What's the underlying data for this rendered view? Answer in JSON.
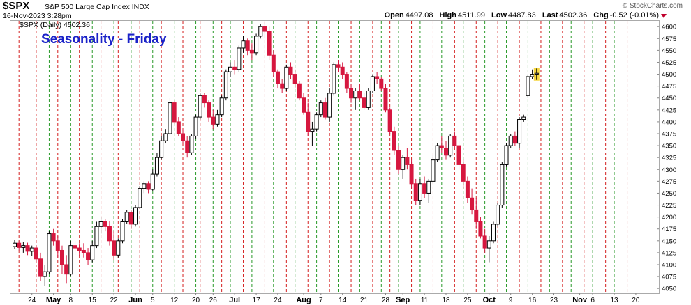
{
  "header": {
    "ticker": "$SPX",
    "company": "S&P 500 Large Cap Index INDX",
    "datetime": "16-Nov-2023 3:28pm",
    "watermark": "© StockCharts.com",
    "quote": {
      "open_label": "Open",
      "open": "4497.08",
      "high_label": "High",
      "high": "4511.99",
      "low_label": "Low",
      "low": "4487.83",
      "last_label": "Last",
      "last": "4502.36",
      "chg_label": "Chg",
      "chg": "-0.52 (-0.01%)"
    }
  },
  "colors": {
    "up_candle": "#000000",
    "down_candle": "#d6173f",
    "friday_line": "#2a9a2a",
    "monday_line": "#d42020",
    "title_color": "#1a22c8",
    "last_highlight": "#f5d020"
  },
  "chart_data": {
    "type": "candlestick",
    "title": "Seasonality - Friday",
    "legend": "$SPX (Daily) 4502.36",
    "y_axis": {
      "position": "right",
      "ylim": [
        4040,
        4612
      ],
      "ticks": [
        4050,
        4075,
        4100,
        4125,
        4150,
        4175,
        4200,
        4225,
        4250,
        4275,
        4300,
        4325,
        4350,
        4375,
        4400,
        4425,
        4450,
        4475,
        4500,
        4525,
        4550,
        4575,
        4600
      ]
    },
    "x_ticks": [
      {
        "i": 4,
        "label": "24"
      },
      {
        "i": 9,
        "label": "May"
      },
      {
        "i": 13,
        "label": "8"
      },
      {
        "i": 18,
        "label": "15"
      },
      {
        "i": 23,
        "label": "22"
      },
      {
        "i": 28,
        "label": "Jun"
      },
      {
        "i": 32,
        "label": "5"
      },
      {
        "i": 37,
        "label": "12"
      },
      {
        "i": 42,
        "label": "20"
      },
      {
        "i": 46,
        "label": "26"
      },
      {
        "i": 51,
        "label": "Jul"
      },
      {
        "i": 56,
        "label": "17"
      },
      {
        "i": 61,
        "label": "24"
      },
      {
        "i": 67,
        "label": "Aug"
      },
      {
        "i": 71,
        "label": "7"
      },
      {
        "i": 76,
        "label": "14"
      },
      {
        "i": 81,
        "label": "21"
      },
      {
        "i": 86,
        "label": "28"
      },
      {
        "i": 90,
        "label": "Sep"
      },
      {
        "i": 95,
        "label": "11"
      },
      {
        "i": 100,
        "label": "18"
      },
      {
        "i": 105,
        "label": "25"
      },
      {
        "i": 110,
        "label": "Oct"
      },
      {
        "i": 115,
        "label": "9"
      },
      {
        "i": 120,
        "label": "16"
      },
      {
        "i": 125,
        "label": "23"
      },
      {
        "i": 131,
        "label": "Nov"
      },
      {
        "i": 134,
        "label": "6"
      },
      {
        "i": 139,
        "label": "13"
      },
      {
        "i": 144,
        "label": "20"
      }
    ],
    "friday_lines": [
      8,
      13,
      18,
      23,
      27,
      32,
      37,
      42,
      46,
      50,
      55,
      60,
      65,
      70,
      75,
      80,
      85,
      89,
      94,
      99,
      104,
      109,
      114,
      119,
      124,
      129,
      134,
      139
    ],
    "monday_lines": [
      1,
      5,
      10,
      15,
      20,
      24,
      29,
      34,
      39,
      43,
      48,
      53,
      58,
      63,
      68,
      73,
      78,
      83,
      87,
      92,
      97,
      102,
      107,
      112,
      117,
      122,
      127,
      132,
      137,
      142
    ],
    "candles": [
      [
        4138,
        4152,
        4133,
        4145
      ],
      [
        4145,
        4150,
        4130,
        4136
      ],
      [
        4136,
        4148,
        4125,
        4140
      ],
      [
        4140,
        4146,
        4120,
        4128
      ],
      [
        4128,
        4140,
        4118,
        4135
      ],
      [
        4135,
        4140,
        4105,
        4112
      ],
      [
        4112,
        4125,
        4065,
        4075
      ],
      [
        4075,
        4100,
        4055,
        4085
      ],
      [
        4085,
        4170,
        4080,
        4165
      ],
      [
        4165,
        4175,
        4140,
        4150
      ],
      [
        4150,
        4160,
        4115,
        4130
      ],
      [
        4130,
        4140,
        4080,
        4100
      ],
      [
        4100,
        4120,
        4060,
        4080
      ],
      [
        4080,
        4150,
        4075,
        4140
      ],
      [
        4140,
        4150,
        4120,
        4135
      ],
      [
        4135,
        4145,
        4118,
        4130
      ],
      [
        4130,
        4145,
        4115,
        4125
      ],
      [
        4125,
        4135,
        4100,
        4110
      ],
      [
        4110,
        4150,
        4105,
        4140
      ],
      [
        4140,
        4190,
        4135,
        4180
      ],
      [
        4180,
        4200,
        4165,
        4190
      ],
      [
        4190,
        4195,
        4170,
        4180
      ],
      [
        4180,
        4192,
        4140,
        4150
      ],
      [
        4150,
        4170,
        4110,
        4120
      ],
      [
        4120,
        4155,
        4115,
        4150
      ],
      [
        4150,
        4195,
        4145,
        4190
      ],
      [
        4190,
        4215,
        4185,
        4210
      ],
      [
        4210,
        4215,
        4175,
        4185
      ],
      [
        4185,
        4225,
        4180,
        4220
      ],
      [
        4220,
        4265,
        4218,
        4260
      ],
      [
        4260,
        4275,
        4250,
        4270
      ],
      [
        4270,
        4275,
        4250,
        4258
      ],
      [
        4258,
        4300,
        4255,
        4290
      ],
      [
        4290,
        4335,
        4285,
        4325
      ],
      [
        4325,
        4370,
        4320,
        4360
      ],
      [
        4360,
        4385,
        4355,
        4375
      ],
      [
        4375,
        4450,
        4370,
        4440
      ],
      [
        4440,
        4445,
        4395,
        4400
      ],
      [
        4400,
        4410,
        4370,
        4375
      ],
      [
        4375,
        4385,
        4355,
        4360
      ],
      [
        4360,
        4370,
        4325,
        4335
      ],
      [
        4335,
        4375,
        4330,
        4370
      ],
      [
        4370,
        4415,
        4365,
        4410
      ],
      [
        4410,
        4460,
        4405,
        4455
      ],
      [
        4455,
        4460,
        4430,
        4440
      ],
      [
        4440,
        4445,
        4400,
        4410
      ],
      [
        4410,
        4425,
        4385,
        4395
      ],
      [
        4395,
        4425,
        4390,
        4415
      ],
      [
        4415,
        4455,
        4410,
        4450
      ],
      [
        4450,
        4510,
        4445,
        4505
      ],
      [
        4505,
        4525,
        4495,
        4515
      ],
      [
        4515,
        4530,
        4500,
        4510
      ],
      [
        4510,
        4560,
        4505,
        4555
      ],
      [
        4555,
        4580,
        4545,
        4570
      ],
      [
        4570,
        4575,
        4540,
        4550
      ],
      [
        4550,
        4565,
        4530,
        4545
      ],
      [
        4545,
        4585,
        4540,
        4580
      ],
      [
        4580,
        4605,
        4575,
        4600
      ],
      [
        4600,
        4610,
        4580,
        4590
      ],
      [
        4590,
        4600,
        4530,
        4540
      ],
      [
        4540,
        4550,
        4495,
        4505
      ],
      [
        4505,
        4510,
        4470,
        4480
      ],
      [
        4480,
        4490,
        4460,
        4470
      ],
      [
        4470,
        4520,
        4465,
        4515
      ],
      [
        4515,
        4525,
        4490,
        4500
      ],
      [
        4500,
        4510,
        4470,
        4480
      ],
      [
        4480,
        4485,
        4445,
        4450
      ],
      [
        4450,
        4460,
        4415,
        4420
      ],
      [
        4420,
        4440,
        4370,
        4380
      ],
      [
        4380,
        4400,
        4350,
        4385
      ],
      [
        4385,
        4420,
        4380,
        4415
      ],
      [
        4415,
        4445,
        4410,
        4440
      ],
      [
        4440,
        4450,
        4405,
        4410
      ],
      [
        4410,
        4470,
        4400,
        4460
      ],
      [
        4460,
        4525,
        4455,
        4520
      ],
      [
        4520,
        4530,
        4505,
        4515
      ],
      [
        4515,
        4525,
        4490,
        4500
      ],
      [
        4500,
        4505,
        4460,
        4470
      ],
      [
        4470,
        4480,
        4440,
        4450
      ],
      [
        4450,
        4470,
        4425,
        4465
      ],
      [
        4465,
        4480,
        4445,
        4450
      ],
      [
        4450,
        4460,
        4425,
        4430
      ],
      [
        4430,
        4470,
        4425,
        4465
      ],
      [
        4465,
        4500,
        4460,
        4495
      ],
      [
        4495,
        4505,
        4480,
        4490
      ],
      [
        4490,
        4495,
        4465,
        4470
      ],
      [
        4470,
        4480,
        4420,
        4425
      ],
      [
        4425,
        4430,
        4375,
        4380
      ],
      [
        4380,
        4390,
        4330,
        4340
      ],
      [
        4340,
        4350,
        4290,
        4300
      ],
      [
        4300,
        4330,
        4280,
        4325
      ],
      [
        4325,
        4345,
        4300,
        4310
      ],
      [
        4310,
        4320,
        4260,
        4270
      ],
      [
        4270,
        4280,
        4225,
        4235
      ],
      [
        4235,
        4280,
        4225,
        4270
      ],
      [
        4270,
        4285,
        4240,
        4250
      ],
      [
        4250,
        4280,
        4230,
        4275
      ],
      [
        4275,
        4330,
        4270,
        4320
      ],
      [
        4320,
        4355,
        4315,
        4350
      ],
      [
        4350,
        4370,
        4335,
        4345
      ],
      [
        4345,
        4360,
        4320,
        4330
      ],
      [
        4330,
        4375,
        4325,
        4370
      ],
      [
        4370,
        4380,
        4345,
        4350
      ],
      [
        4350,
        4360,
        4300,
        4310
      ],
      [
        4310,
        4320,
        4260,
        4275
      ],
      [
        4275,
        4285,
        4230,
        4240
      ],
      [
        4240,
        4260,
        4205,
        4215
      ],
      [
        4215,
        4240,
        4175,
        4190
      ],
      [
        4190,
        4200,
        4155,
        4160
      ],
      [
        4160,
        4175,
        4125,
        4135
      ],
      [
        4135,
        4160,
        4105,
        4150
      ],
      [
        4150,
        4190,
        4145,
        4185
      ],
      [
        4185,
        4230,
        4180,
        4225
      ],
      [
        4225,
        4315,
        4220,
        4310
      ],
      [
        4310,
        4355,
        4305,
        4350
      ],
      [
        4350,
        4375,
        4345,
        4370
      ],
      [
        4370,
        4380,
        4350,
        4355
      ],
      [
        4355,
        4410,
        4345,
        4405
      ],
      [
        4405,
        4415,
        4400,
        4410
      ],
      [
        4455,
        4500,
        4450,
        4495
      ],
      [
        4495,
        4510,
        4490,
        4500
      ],
      [
        4500,
        4512,
        4488,
        4502
      ]
    ]
  }
}
